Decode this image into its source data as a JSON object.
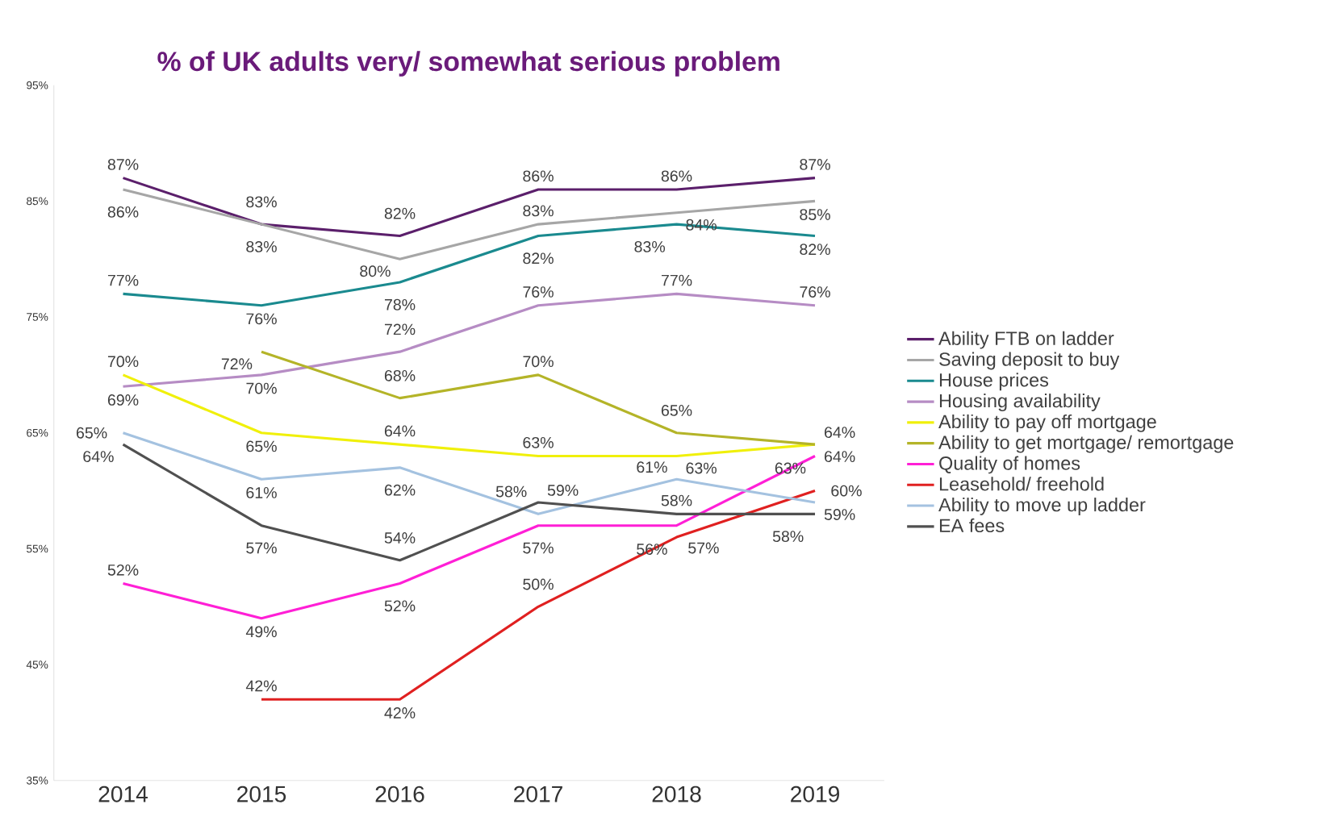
{
  "chart_data": {
    "type": "line",
    "title": "% of UK adults very/ somewhat serious problem",
    "categories": [
      "2014",
      "2015",
      "2016",
      "2017",
      "2018",
      "2019"
    ],
    "ylim": [
      35,
      95
    ],
    "yticks": [
      {
        "value": 35,
        "label": "35%"
      },
      {
        "value": 45,
        "label": "45%"
      },
      {
        "value": 55,
        "label": "55%"
      },
      {
        "value": 65,
        "label": "65%"
      },
      {
        "value": 75,
        "label": "75%"
      },
      {
        "value": 85,
        "label": "85%"
      },
      {
        "value": 95,
        "label": "95%"
      }
    ],
    "legend": "right",
    "series": [
      {
        "name": "Ability FTB on ladder",
        "color": "#5b1f6b",
        "values": [
          87,
          83,
          82,
          86,
          86,
          87
        ],
        "value_labels": [
          "87%",
          "83%",
          "82%",
          "86%",
          "86%",
          "87%"
        ]
      },
      {
        "name": "Saving deposit to buy",
        "color": "#a6a6a6",
        "values": [
          86,
          83,
          80,
          83,
          84,
          85
        ],
        "value_labels": [
          "86%",
          "83%",
          "80%",
          "83%",
          "84%",
          "85%"
        ]
      },
      {
        "name": "House prices",
        "color": "#1a8a8f",
        "values": [
          77,
          76,
          78,
          82,
          83,
          82
        ],
        "value_labels": [
          "77%",
          "76%",
          "78%",
          "82%",
          "83%",
          "82%"
        ]
      },
      {
        "name": "Housing availability",
        "color": "#b68cc4",
        "values": [
          69,
          70,
          72,
          76,
          77,
          76
        ],
        "value_labels": [
          "69%",
          "70%",
          "72%",
          "76%",
          "77%",
          "76%"
        ]
      },
      {
        "name": "Ability to pay off mortgage",
        "color": "#f0f00a",
        "values": [
          70,
          65,
          64,
          63,
          63,
          64
        ],
        "value_labels": [
          "70%",
          "65%",
          "64%",
          "63%",
          "63%",
          "64%"
        ]
      },
      {
        "name": "Ability to get mortgage/ remortgage",
        "color": "#b4b428",
        "values": [
          null,
          72,
          68,
          70,
          65,
          64
        ],
        "value_labels": [
          null,
          "72%",
          "68%",
          "70%",
          "65%",
          "64%"
        ]
      },
      {
        "name": "Quality of homes",
        "color": "#ff1fd6",
        "values": [
          52,
          49,
          52,
          57,
          57,
          63
        ],
        "value_labels": [
          "52%",
          "49%",
          "52%",
          "57%",
          "57%",
          "63%"
        ]
      },
      {
        "name": "Leasehold/ freehold",
        "color": "#e02020",
        "values": [
          null,
          42,
          42,
          50,
          56,
          60
        ],
        "value_labels": [
          null,
          "42%",
          "42%",
          "50%",
          "56%",
          "60%"
        ]
      },
      {
        "name": "Ability to move up ladder",
        "color": "#a4c2e0",
        "values": [
          65,
          61,
          62,
          58,
          61,
          59
        ],
        "value_labels": [
          "65%",
          "61%",
          "62%",
          "58%",
          "61%",
          "59%"
        ]
      },
      {
        "name": "EA fees",
        "color": "#505050",
        "values": [
          64,
          57,
          54,
          59,
          58,
          58
        ],
        "value_labels": [
          "64%",
          "57%",
          "54%",
          "59%",
          "58%",
          "58%"
        ]
      }
    ]
  }
}
